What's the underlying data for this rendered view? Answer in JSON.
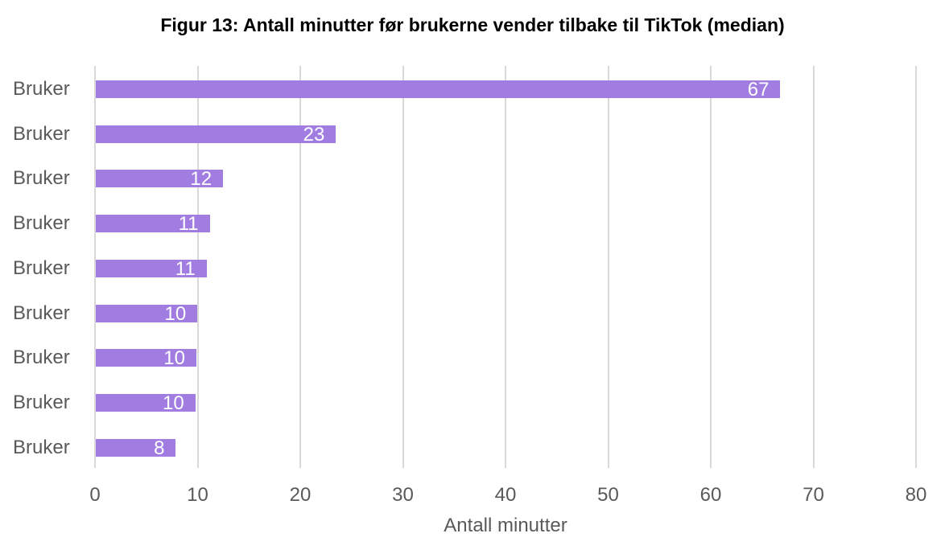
{
  "chart_data": {
    "type": "bar",
    "orientation": "horizontal",
    "title": "Figur 13: Antall minutter før brukerne vender tilbake til TikTok (median)",
    "xlabel": "Antall minutter",
    "ylabel": "",
    "categories": [
      "Bruker",
      "Bruker",
      "Bruker",
      "Bruker",
      "Bruker",
      "Bruker",
      "Bruker",
      "Bruker",
      "Bruker"
    ],
    "values": [
      66.7,
      23.4,
      12.4,
      11.1,
      10.8,
      9.9,
      9.8,
      9.7,
      7.8
    ],
    "data_labels": [
      "67",
      "23",
      "12",
      "11",
      "11",
      "10",
      "10",
      "10",
      "8"
    ],
    "xlim": [
      0,
      80
    ],
    "xticks": [
      "0",
      "10",
      "20",
      "30",
      "40",
      "50",
      "60",
      "70",
      "80"
    ],
    "grid": "vertical",
    "legend": "none",
    "bar_color": "#a17de2"
  }
}
